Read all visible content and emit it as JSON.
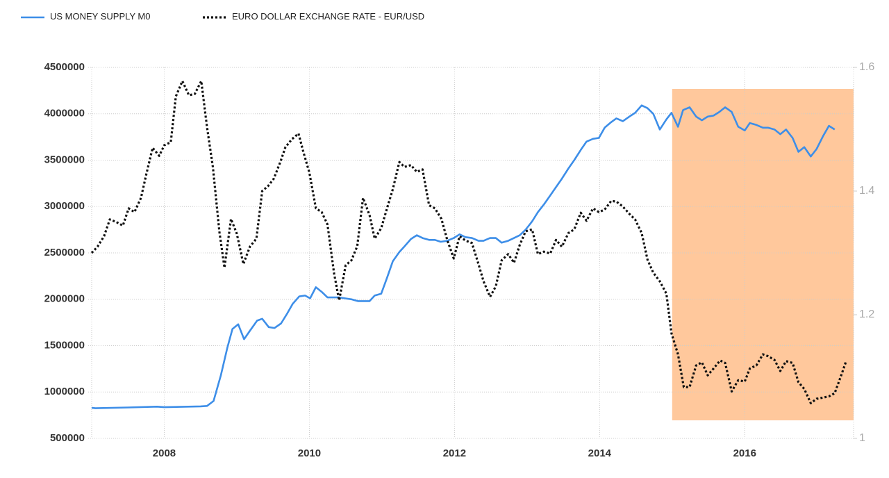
{
  "chart_data": {
    "type": "line",
    "xlim": [
      2007,
      2017.5
    ],
    "xticks": [
      2008,
      2010,
      2012,
      2014,
      2016
    ],
    "ylim": [
      500000,
      4500000
    ],
    "yticks": [
      500000,
      1000000,
      1500000,
      2000000,
      2500000,
      3000000,
      3500000,
      4000000,
      4500000
    ],
    "y2lim": [
      1,
      1.6
    ],
    "y2ticks": [
      1,
      1.2,
      1.4,
      1.6
    ],
    "grid": true,
    "legend": "top-left",
    "highlight": {
      "x": [
        2015,
        2017.5
      ],
      "color": "#ffc89c"
    },
    "series": [
      {
        "name": "US MONEY SUPPLY M0",
        "color": "#3d8ee8",
        "style": "solid",
        "x": [
          2007.0,
          2007.05,
          2007.5,
          2007.9,
          2008.0,
          2008.5,
          2008.59,
          2008.68,
          2008.78,
          2008.87,
          2008.94,
          2009.02,
          2009.1,
          2009.18,
          2009.28,
          2009.35,
          2009.44,
          2009.52,
          2009.61,
          2009.69,
          2009.77,
          2009.86,
          2009.94,
          2010.01,
          2010.09,
          2010.17,
          2010.25,
          2010.41,
          2010.58,
          2010.67,
          2010.83,
          2010.9,
          2010.99,
          2011.07,
          2011.15,
          2011.24,
          2011.31,
          2011.4,
          2011.48,
          2011.56,
          2011.65,
          2011.73,
          2011.81,
          2011.9,
          2011.99,
          2012.07,
          2012.15,
          2012.24,
          2012.33,
          2012.4,
          2012.49,
          2012.57,
          2012.65,
          2012.74,
          2012.82,
          2012.9,
          2012.98,
          2013.07,
          2013.15,
          2013.23,
          2013.32,
          2013.4,
          2013.48,
          2013.57,
          2013.65,
          2013.74,
          2013.82,
          2013.91,
          2013.99,
          2014.07,
          2014.16,
          2014.23,
          2014.32,
          2014.41,
          2014.49,
          2014.58,
          2014.66,
          2014.74,
          2014.83,
          2014.92,
          2014.99,
          2015.08,
          2015.15,
          2015.24,
          2015.33,
          2015.41,
          2015.49,
          2015.57,
          2015.65,
          2015.73,
          2015.82,
          2015.91,
          2016.0,
          2016.07,
          2016.16,
          2016.25,
          2016.32,
          2016.41,
          2016.49,
          2016.57,
          2016.66,
          2016.74,
          2016.82,
          2016.91,
          2016.99,
          2017.08,
          2017.16,
          2017.24
        ],
        "values": [
          830000,
          825000,
          833000,
          842000,
          836000,
          845000,
          850000,
          904000,
          1180000,
          1480000,
          1680000,
          1730000,
          1570000,
          1660000,
          1770000,
          1790000,
          1700000,
          1690000,
          1740000,
          1840000,
          1950000,
          2030000,
          2040000,
          2010000,
          2130000,
          2080000,
          2020000,
          2020000,
          2000000,
          1980000,
          1980000,
          2040000,
          2060000,
          2230000,
          2410000,
          2510000,
          2570000,
          2650000,
          2690000,
          2660000,
          2640000,
          2640000,
          2620000,
          2630000,
          2660000,
          2700000,
          2670000,
          2660000,
          2630000,
          2630000,
          2660000,
          2660000,
          2610000,
          2630000,
          2660000,
          2690000,
          2750000,
          2840000,
          2940000,
          3020000,
          3120000,
          3210000,
          3300000,
          3410000,
          3500000,
          3610000,
          3700000,
          3730000,
          3740000,
          3850000,
          3910000,
          3950000,
          3920000,
          3970000,
          4010000,
          4090000,
          4060000,
          4000000,
          3830000,
          3940000,
          4010000,
          3860000,
          4040000,
          4070000,
          3970000,
          3930000,
          3970000,
          3980000,
          4020000,
          4070000,
          4020000,
          3860000,
          3820000,
          3900000,
          3880000,
          3850000,
          3850000,
          3830000,
          3780000,
          3830000,
          3740000,
          3590000,
          3640000,
          3540000,
          3620000,
          3760000,
          3870000,
          3830000
        ]
      },
      {
        "name": "EURO DOLLAR EXCHANGE RATE - EUR/USD",
        "color": "#111111",
        "style": "dotted",
        "axis": "y2",
        "x": [
          2007.0,
          2007.08,
          2007.17,
          2007.25,
          2007.34,
          2007.43,
          2007.51,
          2007.59,
          2007.68,
          2007.75,
          2007.84,
          2007.93,
          2008.0,
          2008.09,
          2008.16,
          2008.25,
          2008.34,
          2008.42,
          2008.51,
          2008.59,
          2008.67,
          2008.76,
          2008.83,
          2008.92,
          2009.0,
          2009.09,
          2009.18,
          2009.27,
          2009.35,
          2009.43,
          2009.51,
          2009.6,
          2009.67,
          2009.76,
          2009.85,
          2009.92,
          2010.0,
          2010.09,
          2010.17,
          2010.25,
          2010.34,
          2010.41,
          2010.5,
          2010.58,
          2010.66,
          2010.74,
          2010.83,
          2010.9,
          2010.99,
          2011.07,
          2011.15,
          2011.24,
          2011.31,
          2011.4,
          2011.48,
          2011.56,
          2011.65,
          2011.73,
          2011.82,
          2011.9,
          2011.99,
          2012.07,
          2012.15,
          2012.24,
          2012.33,
          2012.4,
          2012.49,
          2012.57,
          2012.65,
          2012.74,
          2012.82,
          2012.9,
          2012.98,
          2013.07,
          2013.15,
          2013.23,
          2013.32,
          2013.4,
          2013.48,
          2013.57,
          2013.65,
          2013.74,
          2013.82,
          2013.91,
          2013.99,
          2014.07,
          2014.16,
          2014.23,
          2014.32,
          2014.41,
          2014.49,
          2014.58,
          2014.66,
          2014.74,
          2014.83,
          2014.92,
          2014.99,
          2015.08,
          2015.16,
          2015.24,
          2015.33,
          2015.41,
          2015.49,
          2015.57,
          2015.66,
          2015.73,
          2015.82,
          2015.91,
          2016.0,
          2016.07,
          2016.16,
          2016.25,
          2016.32,
          2016.41,
          2016.49,
          2016.57,
          2016.66,
          2016.74,
          2016.82,
          2016.91,
          2016.99,
          2017.08,
          2017.16,
          2017.24,
          2017.33,
          2017.4
        ],
        "values": [
          1.3,
          1.31,
          1.327,
          1.354,
          1.35,
          1.344,
          1.372,
          1.366,
          1.389,
          1.426,
          1.47,
          1.457,
          1.474,
          1.479,
          1.553,
          1.578,
          1.555,
          1.557,
          1.578,
          1.503,
          1.439,
          1.334,
          1.276,
          1.355,
          1.331,
          1.282,
          1.31,
          1.323,
          1.4,
          1.408,
          1.42,
          1.447,
          1.471,
          1.484,
          1.493,
          1.462,
          1.43,
          1.372,
          1.366,
          1.346,
          1.267,
          1.223,
          1.28,
          1.288,
          1.311,
          1.389,
          1.361,
          1.323,
          1.34,
          1.372,
          1.403,
          1.447,
          1.439,
          1.442,
          1.431,
          1.435,
          1.377,
          1.372,
          1.355,
          1.321,
          1.291,
          1.327,
          1.32,
          1.316,
          1.282,
          1.254,
          1.229,
          1.246,
          1.288,
          1.298,
          1.284,
          1.313,
          1.335,
          1.338,
          1.298,
          1.302,
          1.299,
          1.321,
          1.31,
          1.332,
          1.338,
          1.365,
          1.352,
          1.372,
          1.366,
          1.37,
          1.384,
          1.383,
          1.375,
          1.363,
          1.354,
          1.332,
          1.289,
          1.268,
          1.254,
          1.234,
          1.17,
          1.136,
          1.083,
          1.083,
          1.118,
          1.123,
          1.102,
          1.113,
          1.126,
          1.122,
          1.076,
          1.094,
          1.092,
          1.113,
          1.118,
          1.136,
          1.133,
          1.127,
          1.109,
          1.125,
          1.122,
          1.091,
          1.08,
          1.057,
          1.064,
          1.066,
          1.068,
          1.073,
          1.102,
          1.126
        ]
      }
    ]
  }
}
